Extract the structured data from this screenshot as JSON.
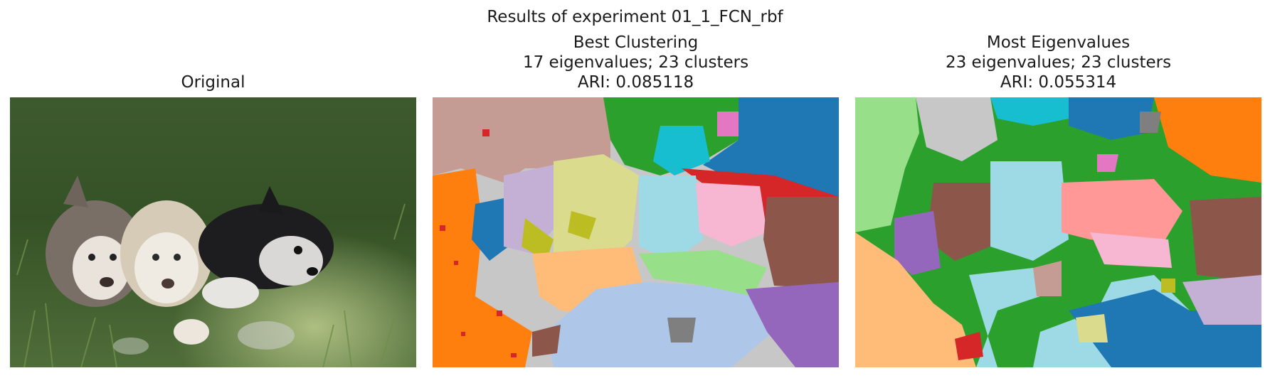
{
  "figure": {
    "suptitle": "Results of experiment 01_1_FCN_rbf",
    "panels": [
      {
        "id": "original",
        "title_lines": [
          "Original"
        ],
        "content": "photo of three husky puppies on grass"
      },
      {
        "id": "best",
        "title_lines": [
          "Best Clustering",
          "17 eigenvalues; 23 clusters",
          "ARI: 0.085118"
        ],
        "content": "cluster label map"
      },
      {
        "id": "most",
        "title_lines": [
          "Most Eigenvalues",
          "23 eigenvalues; 23 clusters",
          "ARI: 0.055314"
        ],
        "content": "cluster label map"
      }
    ],
    "palette": {
      "blue": "#1f77b4",
      "orange": "#ff7f0e",
      "light_orange": "#ffbb78",
      "green": "#2ca02c",
      "light_green": "#98df8a",
      "red": "#d62728",
      "salmon": "#ff9896",
      "purple": "#9467bd",
      "lavender": "#c5b0d5",
      "brown": "#8c564b",
      "rose": "#c49c94",
      "pink": "#e377c2",
      "light_pink": "#f7b6d2",
      "gray": "#7f7f7f",
      "light_gray": "#c7c7c7",
      "olive": "#bcbd22",
      "khaki": "#dbdb8d",
      "cyan": "#17becf",
      "light_cyan": "#9edae5",
      "light_blue": "#aec7e8"
    }
  }
}
